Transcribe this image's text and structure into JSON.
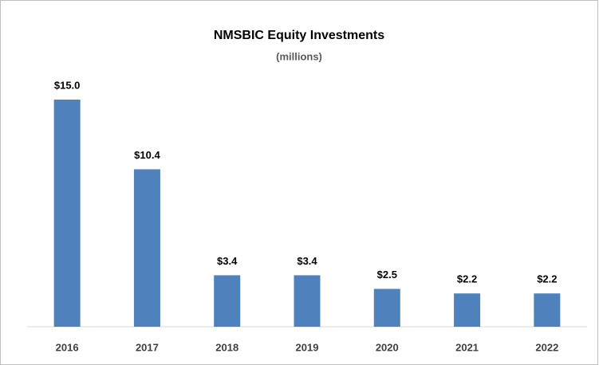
{
  "chart_data": {
    "type": "bar",
    "title": "NMSBIC Equity Investments",
    "subtitle": "(millions)",
    "categories": [
      "2016",
      "2017",
      "2018",
      "2019",
      "2020",
      "2021",
      "2022"
    ],
    "values": [
      15.0,
      10.4,
      3.4,
      3.4,
      2.5,
      2.2,
      2.2
    ],
    "value_labels": [
      "$15.0",
      "$10.4",
      "$3.4",
      "$3.4",
      "$2.5",
      "$2.2",
      "$2.2"
    ],
    "color": "#4f81bd"
  }
}
